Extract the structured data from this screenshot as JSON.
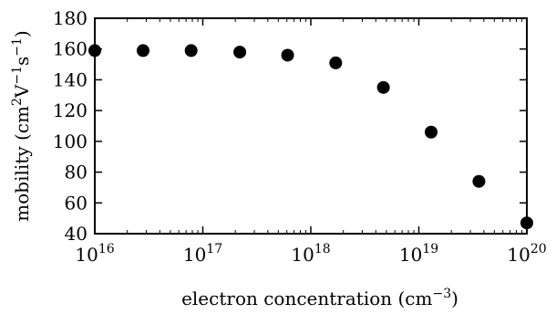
{
  "chart_data": {
    "type": "scatter",
    "xlabel_parts": [
      "electron concentration (cm",
      "−3",
      ")"
    ],
    "ylabel_parts": [
      "mobility (cm",
      "2",
      "V",
      "−1",
      "s",
      "−1",
      ")"
    ],
    "xscale": "log",
    "xlim": [
      1e+16,
      1e+20
    ],
    "ylim": [
      40,
      180
    ],
    "xticks": [
      {
        "value": 1e+16,
        "base": "10",
        "exp": "16"
      },
      {
        "value": 1e+17,
        "base": "10",
        "exp": "17"
      },
      {
        "value": 1e+18,
        "base": "10",
        "exp": "18"
      },
      {
        "value": 1e+19,
        "base": "10",
        "exp": "19"
      },
      {
        "value": 1e+20,
        "base": "10",
        "exp": "20"
      }
    ],
    "yticks": [
      40,
      60,
      80,
      100,
      120,
      140,
      160,
      180
    ],
    "grid": false,
    "marker_color": "#000000",
    "points": [
      {
        "x": 1e+16,
        "y": 159
      },
      {
        "x": 2.8e+16,
        "y": 159
      },
      {
        "x": 7.8e+16,
        "y": 159
      },
      {
        "x": 2.2e+17,
        "y": 158
      },
      {
        "x": 6.1e+17,
        "y": 156
      },
      {
        "x": 1.7e+18,
        "y": 151
      },
      {
        "x": 4.7e+18,
        "y": 135
      },
      {
        "x": 1.3e+19,
        "y": 106
      },
      {
        "x": 3.6e+19,
        "y": 74
      },
      {
        "x": 1e+20,
        "y": 47
      }
    ]
  }
}
